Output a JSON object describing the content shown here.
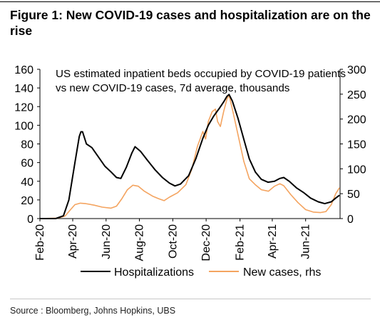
{
  "figure": {
    "title": "Figure 1: New COVID-19 cases and hospitalization are on the rise",
    "source": "Source : Bloomberg, Johns Hopkins, UBS"
  },
  "chart_data": {
    "type": "line",
    "annotation": [
      "US estimated inpatient beds occupied by COVID-19 patients",
      "vs new COVID-19 cases, 7d average, thousands"
    ],
    "x_ticks": [
      "Feb-20",
      "Apr-20",
      "Jun-20",
      "Aug-20",
      "Oct-20",
      "Dec-20",
      "Feb-21",
      "Apr-21",
      "Jun-21"
    ],
    "y_left": {
      "min": 0,
      "max": 160,
      "ticks": [
        0,
        20,
        40,
        60,
        80,
        100,
        120,
        140,
        160
      ]
    },
    "y_right": {
      "min": 0,
      "max": 300,
      "ticks": [
        0,
        50,
        100,
        150,
        200,
        250,
        300
      ]
    },
    "legend_position": "bottom",
    "grid": false,
    "colors": {
      "hospitalizations": "#000000",
      "new_cases": "#f4a460"
    },
    "series": [
      {
        "name": "Hospitalizations",
        "axis": "left",
        "points": [
          [
            "2020-02-01",
            0
          ],
          [
            "2020-03-01",
            0
          ],
          [
            "2020-03-15",
            3
          ],
          [
            "2020-03-25",
            20
          ],
          [
            "2020-04-05",
            60
          ],
          [
            "2020-04-13",
            88
          ],
          [
            "2020-04-16",
            93
          ],
          [
            "2020-04-19",
            93
          ],
          [
            "2020-04-26",
            80
          ],
          [
            "2020-05-06",
            76
          ],
          [
            "2020-05-18",
            66
          ],
          [
            "2020-05-30",
            56
          ],
          [
            "2020-06-10",
            50
          ],
          [
            "2020-06-20",
            44
          ],
          [
            "2020-06-28",
            43
          ],
          [
            "2020-07-08",
            55
          ],
          [
            "2020-07-18",
            70
          ],
          [
            "2020-07-24",
            77
          ],
          [
            "2020-08-03",
            72
          ],
          [
            "2020-08-15",
            63
          ],
          [
            "2020-08-30",
            52
          ],
          [
            "2020-09-12",
            44
          ],
          [
            "2020-09-25",
            38
          ],
          [
            "2020-10-05",
            35
          ],
          [
            "2020-10-15",
            37
          ],
          [
            "2020-10-30",
            46
          ],
          [
            "2020-11-12",
            64
          ],
          [
            "2020-11-25",
            86
          ],
          [
            "2020-12-05",
            100
          ],
          [
            "2020-12-15",
            110
          ],
          [
            "2020-12-25",
            118
          ],
          [
            "2021-01-02",
            125
          ],
          [
            "2021-01-08",
            131
          ],
          [
            "2021-01-12",
            133
          ],
          [
            "2021-01-18",
            126
          ],
          [
            "2021-01-28",
            108
          ],
          [
            "2021-02-08",
            85
          ],
          [
            "2021-02-18",
            64
          ],
          [
            "2021-03-01",
            50
          ],
          [
            "2021-03-12",
            42
          ],
          [
            "2021-03-24",
            39
          ],
          [
            "2021-04-05",
            40
          ],
          [
            "2021-04-15",
            43
          ],
          [
            "2021-04-22",
            44
          ],
          [
            "2021-05-02",
            40
          ],
          [
            "2021-05-15",
            33
          ],
          [
            "2021-05-28",
            28
          ],
          [
            "2021-06-10",
            22
          ],
          [
            "2021-06-24",
            18
          ],
          [
            "2021-07-06",
            16
          ],
          [
            "2021-07-18",
            18
          ],
          [
            "2021-07-26",
            22
          ],
          [
            "2021-08-02",
            25
          ]
        ]
      },
      {
        "name": "New cases, rhs",
        "axis": "right",
        "points": [
          [
            "2020-02-01",
            0
          ],
          [
            "2020-03-05",
            1
          ],
          [
            "2020-03-18",
            5
          ],
          [
            "2020-03-28",
            18
          ],
          [
            "2020-04-05",
            28
          ],
          [
            "2020-04-15",
            31
          ],
          [
            "2020-04-25",
            30
          ],
          [
            "2020-05-10",
            27
          ],
          [
            "2020-05-25",
            23
          ],
          [
            "2020-06-10",
            21
          ],
          [
            "2020-06-20",
            25
          ],
          [
            "2020-06-30",
            40
          ],
          [
            "2020-07-10",
            58
          ],
          [
            "2020-07-20",
            67
          ],
          [
            "2020-07-30",
            65
          ],
          [
            "2020-08-10",
            55
          ],
          [
            "2020-08-25",
            45
          ],
          [
            "2020-09-05",
            40
          ],
          [
            "2020-09-15",
            36
          ],
          [
            "2020-09-25",
            43
          ],
          [
            "2020-10-10",
            52
          ],
          [
            "2020-10-25",
            68
          ],
          [
            "2020-11-05",
            100
          ],
          [
            "2020-11-15",
            145
          ],
          [
            "2020-11-25",
            175
          ],
          [
            "2020-11-30",
            160
          ],
          [
            "2020-12-05",
            195
          ],
          [
            "2020-12-12",
            215
          ],
          [
            "2020-12-18",
            220
          ],
          [
            "2020-12-22",
            195
          ],
          [
            "2020-12-27",
            185
          ],
          [
            "2021-01-02",
            215
          ],
          [
            "2021-01-08",
            240
          ],
          [
            "2021-01-12",
            248
          ],
          [
            "2021-01-18",
            220
          ],
          [
            "2021-01-28",
            170
          ],
          [
            "2021-02-08",
            115
          ],
          [
            "2021-02-18",
            80
          ],
          [
            "2021-03-01",
            68
          ],
          [
            "2021-03-12",
            58
          ],
          [
            "2021-03-25",
            55
          ],
          [
            "2021-04-05",
            65
          ],
          [
            "2021-04-15",
            70
          ],
          [
            "2021-04-22",
            66
          ],
          [
            "2021-05-05",
            48
          ],
          [
            "2021-05-18",
            32
          ],
          [
            "2021-06-01",
            18
          ],
          [
            "2021-06-15",
            13
          ],
          [
            "2021-06-28",
            12
          ],
          [
            "2021-07-08",
            14
          ],
          [
            "2021-07-18",
            28
          ],
          [
            "2021-07-26",
            50
          ],
          [
            "2021-08-02",
            62
          ]
        ]
      }
    ]
  }
}
